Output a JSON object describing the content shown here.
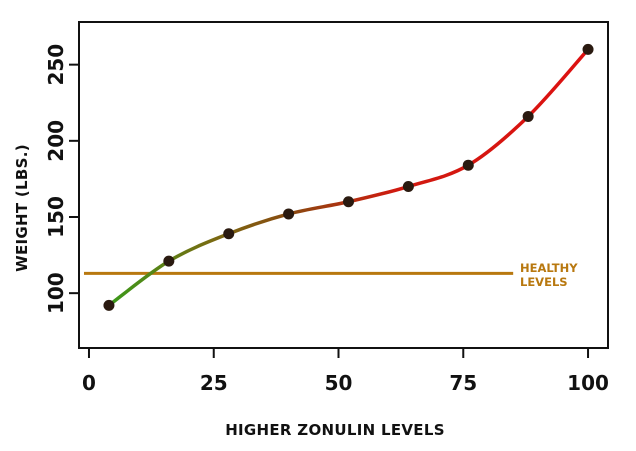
{
  "chart_data": {
    "type": "line",
    "xlabel": "HIGHER ZONULIN LEVELS",
    "ylabel": "WEIGHT (LBS.)",
    "xlim": [
      -2,
      104
    ],
    "ylim": [
      64,
      278
    ],
    "x_ticks": [
      0,
      25,
      50,
      75,
      100
    ],
    "y_ticks": [
      100,
      150,
      200,
      250
    ],
    "grid": false,
    "series": [
      {
        "x": [
          4,
          16,
          28,
          40,
          52,
          64,
          76,
          88,
          100
        ],
        "values": [
          92,
          121,
          139,
          152,
          160,
          170,
          184,
          216,
          260
        ]
      }
    ],
    "reference_line": {
      "label_line1": "HEALTHY",
      "label_line2": "LEVELS",
      "value": 113,
      "x_start": -1,
      "x_end": 85,
      "color": "#b8780f"
    },
    "gradient_colors": [
      "#3a9a1a",
      "#8a4a10",
      "#dd1111"
    ],
    "marker_color": "#2a1a10"
  }
}
